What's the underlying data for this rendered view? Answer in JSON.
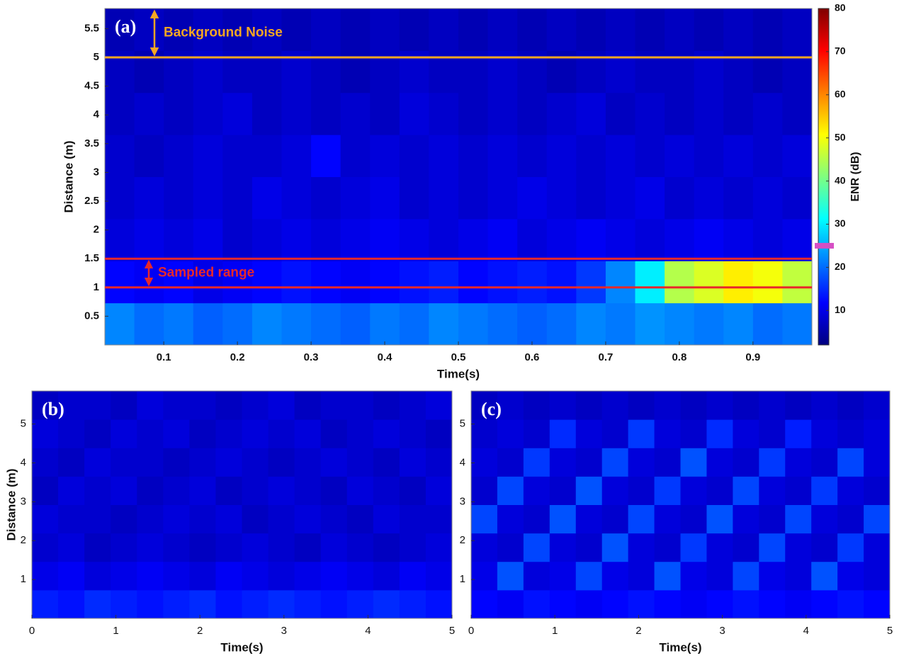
{
  "chart_data": [
    {
      "type": "heatmap",
      "label": "(a)",
      "xlabel": "Time(s)",
      "ylabel": "Distance (m)",
      "xlim": [
        0.02,
        0.98
      ],
      "ylim": [
        0,
        5.85
      ],
      "xticks": [
        0.1,
        0.2,
        0.3,
        0.4,
        0.5,
        0.6,
        0.7,
        0.8,
        0.9
      ],
      "yticks": [
        0.5,
        1,
        1.5,
        2,
        2.5,
        3,
        3.5,
        4,
        4.5,
        5,
        5.5
      ],
      "hlines": [
        {
          "value": 5,
          "color": "#f5a623"
        },
        {
          "value": 1.5,
          "color": "#e8282a"
        },
        {
          "value": 1,
          "color": "#e8282a"
        }
      ],
      "annotations": [
        "Background Noise",
        "Sampled range"
      ],
      "colorbar": {
        "label": "ENR (dB)",
        "lim": [
          2,
          80
        ],
        "ticks": [
          10,
          20,
          30,
          40,
          50,
          60,
          70,
          80
        ],
        "threshold": 25,
        "threshold_color": "#d64fc4"
      },
      "z": [
        [
          22,
          20,
          21,
          19,
          20,
          22,
          21,
          20,
          19,
          21,
          20,
          22,
          21,
          20,
          19,
          20,
          22,
          21,
          23,
          22,
          21,
          22,
          20,
          21
        ],
        [
          12,
          11,
          12,
          10,
          11,
          12,
          13,
          12,
          11,
          12,
          13,
          14,
          12,
          13,
          14,
          13,
          16,
          22,
          30,
          45,
          48,
          52,
          50,
          46
        ],
        [
          9,
          10,
          9,
          10,
          8,
          9,
          10,
          9,
          10,
          11,
          10,
          9,
          10,
          11,
          9,
          10,
          11,
          10,
          9,
          10,
          11,
          10,
          9,
          10
        ],
        [
          8,
          9,
          8,
          9,
          8,
          10,
          9,
          8,
          9,
          10,
          8,
          9,
          8,
          9,
          10,
          9,
          8,
          9,
          10,
          8,
          9,
          8,
          9,
          8
        ],
        [
          8,
          7,
          8,
          9,
          8,
          8,
          9,
          12,
          8,
          9,
          8,
          9,
          8,
          9,
          8,
          9,
          8,
          9,
          8,
          9,
          8,
          9,
          8,
          9
        ],
        [
          7,
          8,
          7,
          8,
          9,
          7,
          8,
          7,
          8,
          7,
          9,
          8,
          7,
          8,
          7,
          8,
          9,
          7,
          8,
          7,
          8,
          7,
          8,
          7
        ],
        [
          7,
          6,
          7,
          8,
          7,
          7,
          8,
          7,
          6,
          7,
          8,
          7,
          7,
          8,
          7,
          6,
          7,
          8,
          7,
          7,
          8,
          7,
          6,
          7
        ],
        [
          6,
          7,
          6,
          7,
          6,
          7,
          6,
          7,
          6,
          7,
          6,
          7,
          6,
          7,
          6,
          7,
          6,
          7,
          6,
          7,
          6,
          7,
          6,
          7
        ]
      ]
    },
    {
      "type": "heatmap",
      "label": "(b)",
      "xlabel": "Time(s)",
      "ylabel": "Distance (m)",
      "xlim": [
        0,
        5
      ],
      "ylim": [
        0,
        5.85
      ],
      "xticks": [
        0,
        1,
        2,
        3,
        4,
        5
      ],
      "yticks": [
        1,
        2,
        3,
        4,
        5
      ],
      "z": [
        [
          14,
          13,
          15,
          14,
          13,
          14,
          15,
          13,
          14,
          15,
          14,
          13,
          14,
          15,
          14,
          13
        ],
        [
          10,
          11,
          9,
          10,
          11,
          10,
          9,
          11,
          10,
          9,
          10,
          11,
          10,
          9,
          11,
          10
        ],
        [
          8,
          9,
          7,
          8,
          9,
          8,
          7,
          8,
          9,
          8,
          7,
          9,
          8,
          7,
          8,
          9
        ],
        [
          9,
          8,
          8,
          7,
          8,
          9,
          8,
          9,
          7,
          8,
          9,
          8,
          7,
          9,
          8,
          8
        ],
        [
          7,
          9,
          8,
          9,
          7,
          8,
          9,
          7,
          8,
          9,
          8,
          7,
          9,
          8,
          7,
          9
        ],
        [
          8,
          7,
          9,
          8,
          8,
          7,
          8,
          9,
          8,
          7,
          8,
          9,
          8,
          7,
          9,
          8
        ],
        [
          9,
          8,
          7,
          9,
          8,
          9,
          7,
          8,
          9,
          8,
          9,
          7,
          8,
          9,
          8,
          7
        ],
        [
          7,
          8,
          8,
          7,
          9,
          8,
          8,
          7,
          8,
          9,
          7,
          8,
          8,
          7,
          8,
          9
        ]
      ]
    },
    {
      "type": "heatmap",
      "label": "(c)",
      "xlabel": "Time(s)",
      "xlim": [
        0,
        5
      ],
      "ylim": [
        0,
        5.85
      ],
      "xticks": [
        0,
        1,
        2,
        3,
        4,
        5
      ],
      "yticks": [
        1,
        2,
        3,
        4,
        5
      ],
      "z": [
        [
          12,
          11,
          13,
          12,
          11,
          12,
          13,
          12,
          11,
          12,
          13,
          12,
          11,
          12,
          13,
          12
        ],
        [
          10,
          18,
          9,
          10,
          17,
          10,
          9,
          18,
          10,
          9,
          17,
          10,
          9,
          18,
          10,
          9
        ],
        [
          9,
          8,
          17,
          9,
          8,
          18,
          9,
          8,
          16,
          9,
          8,
          17,
          9,
          8,
          16,
          9
        ],
        [
          17,
          9,
          8,
          18,
          9,
          8,
          17,
          9,
          8,
          18,
          9,
          8,
          17,
          9,
          8,
          17
        ],
        [
          8,
          17,
          9,
          8,
          18,
          9,
          8,
          16,
          9,
          8,
          17,
          9,
          8,
          16,
          9,
          8
        ],
        [
          9,
          8,
          16,
          9,
          8,
          17,
          9,
          8,
          18,
          9,
          8,
          16,
          9,
          8,
          17,
          9
        ],
        [
          8,
          9,
          8,
          15,
          9,
          8,
          16,
          9,
          8,
          15,
          9,
          8,
          14,
          9,
          8,
          9
        ],
        [
          7,
          8,
          7,
          8,
          7,
          8,
          7,
          8,
          7,
          8,
          7,
          8,
          7,
          8,
          7,
          8
        ]
      ]
    }
  ]
}
